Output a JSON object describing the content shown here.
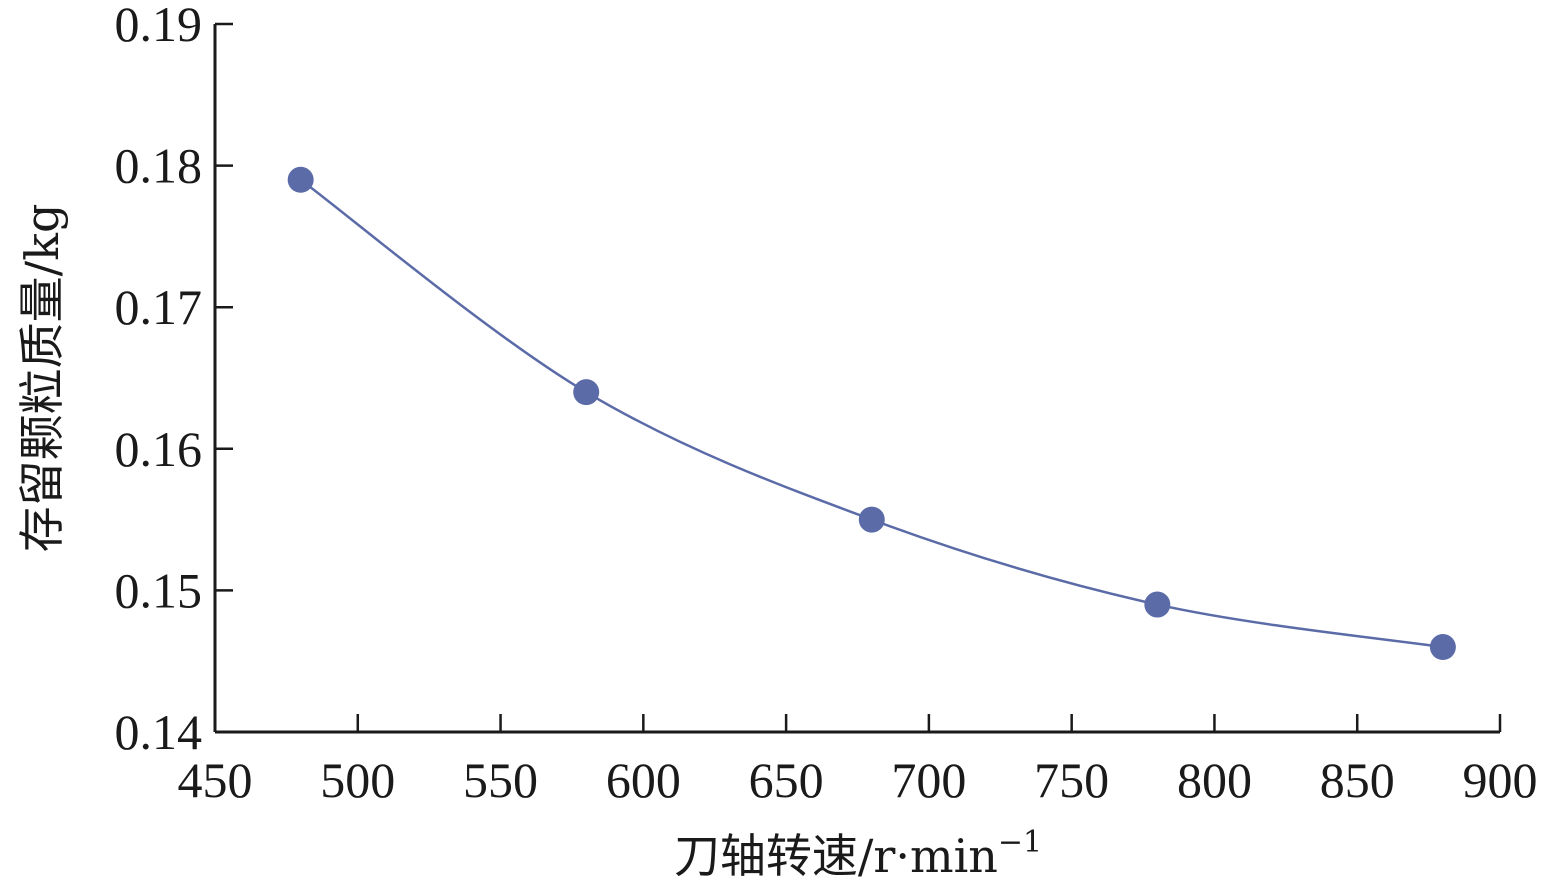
{
  "chart_data": {
    "type": "line",
    "title": "",
    "xlabel": "刀轴转速/r·min",
    "xlabel_sup": "−1",
    "ylabel": "存留颗粒质量/kg",
    "xlim": [
      450,
      900
    ],
    "ylim": [
      0.14,
      0.19
    ],
    "xticks": [
      "450",
      "500",
      "550",
      "600",
      "650",
      "700",
      "750",
      "800",
      "850",
      "900"
    ],
    "yticks": [
      "0.14",
      "0.15",
      "0.16",
      "0.17",
      "0.18",
      "0.19"
    ],
    "grid": false,
    "legend": "none",
    "series": [
      {
        "x": [
          480,
          580,
          680,
          780,
          880
        ],
        "y": [
          0.179,
          0.164,
          0.155,
          0.149,
          0.146
        ],
        "color": "#5b6ba8",
        "marker": "circle",
        "smooth": true
      }
    ]
  }
}
